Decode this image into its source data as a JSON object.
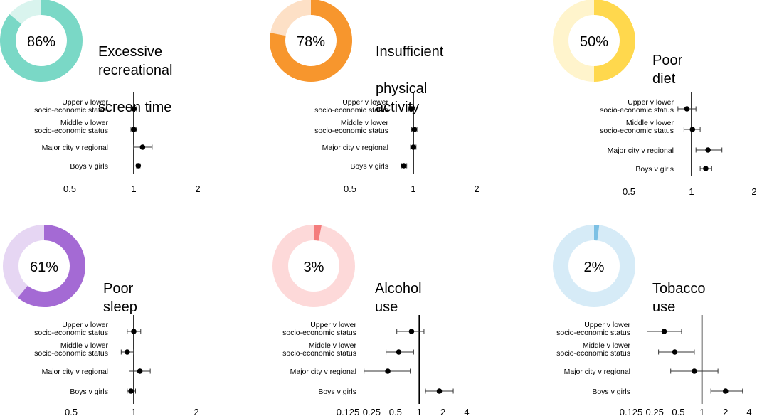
{
  "chart_data": [
    {
      "type": "donut-forest",
      "percent_label": "86%",
      "percent": 86,
      "title": "Excessive recreational screen time",
      "title_lines": [
        "Excessive recreational",
        "screen time"
      ],
      "ring_color": "#7ad8c6",
      "ring_bg_color": "#d9f4ee",
      "row_labels": [
        [
          "Upper v lower",
          "socio-economic status"
        ],
        [
          "Middle v lower",
          "socio-economic status"
        ],
        [
          "Major city v regional"
        ],
        [
          "Boys v girls"
        ]
      ],
      "xscale": "log",
      "xticks": [
        "0.5",
        "1",
        "2"
      ],
      "xtick_values": [
        0.5,
        1,
        2
      ],
      "xlim": [
        0.5,
        2
      ],
      "ref_line": 1,
      "points": [
        {
          "label": "Upper v lower socio-economic status",
          "estimate": 1.0,
          "ci": [
            0.97,
            1.03
          ]
        },
        {
          "label": "Middle v lower socio-economic status",
          "estimate": 1.0,
          "ci": [
            0.97,
            1.03
          ]
        },
        {
          "label": "Major city v regional",
          "estimate": 1.1,
          "ci": [
            1.0,
            1.22
          ]
        },
        {
          "label": "Boys v girls",
          "estimate": 1.05,
          "ci": [
            1.03,
            1.07
          ]
        }
      ]
    },
    {
      "type": "donut-forest",
      "percent_label": "78%",
      "percent": 78,
      "title": "Insufficient physical activity",
      "title_lines": [
        "Insufficient",
        "physical activity"
      ],
      "ring_color": "#f7962d",
      "ring_bg_color": "#fde0c6",
      "row_labels": [
        [
          "Upper v lower",
          "socio-economic status"
        ],
        [
          "Middle v lower",
          "socio-economic status"
        ],
        [
          "Major city v regional"
        ],
        [
          "Boys v girls"
        ]
      ],
      "xscale": "log",
      "xticks": [
        "0.5",
        "1",
        "2"
      ],
      "xtick_values": [
        0.5,
        1,
        2
      ],
      "xlim": [
        0.5,
        2
      ],
      "ref_line": 1,
      "points": [
        {
          "label": "Upper v lower socio-economic status",
          "estimate": 0.98,
          "ci": [
            0.95,
            1.02
          ]
        },
        {
          "label": "Middle v lower socio-economic status",
          "estimate": 1.01,
          "ci": [
            0.98,
            1.04
          ]
        },
        {
          "label": "Major city v regional",
          "estimate": 1.0,
          "ci": [
            0.97,
            1.03
          ]
        },
        {
          "label": "Boys v girls",
          "estimate": 0.9,
          "ci": [
            0.88,
            0.93
          ]
        }
      ]
    },
    {
      "type": "donut-forest",
      "percent_label": "50%",
      "percent": 50,
      "title": "Poor diet",
      "title_lines": [
        "Poor diet"
      ],
      "ring_color": "#ffd84d",
      "ring_bg_color": "#fff4cc",
      "row_labels": [
        [
          "Upper v lower",
          "socio-economic status"
        ],
        [
          "Middle v lower",
          "socio-economic status"
        ],
        [
          "Major city v regional"
        ],
        [
          "Boys v girls"
        ]
      ],
      "xscale": "log",
      "xticks": [
        "0.5",
        "1",
        "2"
      ],
      "xtick_values": [
        0.5,
        1,
        2
      ],
      "xlim": [
        0.5,
        2
      ],
      "ref_line": 1,
      "points": [
        {
          "label": "Upper v lower socio-economic status",
          "estimate": 0.95,
          "ci": [
            0.86,
            1.05
          ]
        },
        {
          "label": "Middle v lower socio-economic status",
          "estimate": 1.01,
          "ci": [
            0.92,
            1.1
          ]
        },
        {
          "label": "Major city v regional",
          "estimate": 1.2,
          "ci": [
            1.05,
            1.4
          ]
        },
        {
          "label": "Boys v girls",
          "estimate": 1.17,
          "ci": [
            1.1,
            1.25
          ]
        }
      ]
    },
    {
      "type": "donut-forest",
      "percent_label": "61%",
      "percent": 61,
      "title": "Poor sleep",
      "title_lines": [
        "Poor sleep"
      ],
      "ring_color": "#a46ad4",
      "ring_bg_color": "#e6d6f3",
      "row_labels": [
        [
          "Upper v lower",
          "socio-economic status"
        ],
        [
          "Middle v lower",
          "socio-economic status"
        ],
        [
          "Major city v regional"
        ],
        [
          "Boys v girls"
        ]
      ],
      "xscale": "log",
      "xticks": [
        "0.5",
        "1",
        "2"
      ],
      "xtick_values": [
        0.5,
        1,
        2
      ],
      "xlim": [
        0.5,
        2
      ],
      "ref_line": 1,
      "points": [
        {
          "label": "Upper v lower socio-economic status",
          "estimate": 1.0,
          "ci": [
            0.93,
            1.08
          ]
        },
        {
          "label": "Middle v lower socio-economic status",
          "estimate": 0.93,
          "ci": [
            0.87,
            1.0
          ]
        },
        {
          "label": "Major city v regional",
          "estimate": 1.07,
          "ci": [
            0.95,
            1.2
          ]
        },
        {
          "label": "Boys v girls",
          "estimate": 0.97,
          "ci": [
            0.93,
            1.02
          ]
        }
      ]
    },
    {
      "type": "donut-forest",
      "percent_label": "3%",
      "percent": 3,
      "title": "Alcohol use",
      "title_lines": [
        "Alcohol use"
      ],
      "ring_color": "#f47c7c",
      "ring_bg_color": "#fdd9d9",
      "row_labels": [
        [
          "Upper v lower",
          "socio-economic status"
        ],
        [
          "Middle v lower",
          "socio-economic status"
        ],
        [
          "Major city v regional"
        ],
        [
          "Boys v girls"
        ]
      ],
      "xscale": "log",
      "xticks": [
        "0.125",
        "0.25",
        "0.5",
        "1",
        "2",
        "4"
      ],
      "xtick_values": [
        0.125,
        0.25,
        0.5,
        1,
        2,
        4
      ],
      "xlim": [
        0.125,
        4
      ],
      "ref_line": 1,
      "points": [
        {
          "label": "Upper v lower socio-economic status",
          "estimate": 0.8,
          "ci": [
            0.52,
            1.15
          ]
        },
        {
          "label": "Middle v lower socio-economic status",
          "estimate": 0.55,
          "ci": [
            0.38,
            0.85
          ]
        },
        {
          "label": "Major city v regional",
          "estimate": 0.4,
          "ci": [
            0.2,
            0.77
          ]
        },
        {
          "label": "Boys v girls",
          "estimate": 1.8,
          "ci": [
            1.2,
            2.7
          ]
        }
      ]
    },
    {
      "type": "donut-forest",
      "percent_label": "2%",
      "percent": 2,
      "title": "Tobacco use",
      "title_lines": [
        "Tobacco use"
      ],
      "ring_color": "#7cc0e4",
      "ring_bg_color": "#d6ebf7",
      "row_labels": [
        [
          "Upper v lower",
          "socio-economic status"
        ],
        [
          "Middle v lower",
          "socio-economic status"
        ],
        [
          "Major city v regional"
        ],
        [
          "Boys v girls"
        ]
      ],
      "xscale": "log",
      "xticks": [
        "0.125",
        "0.25",
        "0.5",
        "1",
        "2",
        "4"
      ],
      "xtick_values": [
        0.125,
        0.25,
        0.5,
        1,
        2,
        4
      ],
      "xlim": [
        0.125,
        4
      ],
      "ref_line": 1,
      "points": [
        {
          "label": "Upper v lower socio-economic status",
          "estimate": 0.33,
          "ci": [
            0.2,
            0.55
          ]
        },
        {
          "label": "Middle v lower socio-economic status",
          "estimate": 0.45,
          "ci": [
            0.28,
            0.8
          ]
        },
        {
          "label": "Major city v regional",
          "estimate": 0.8,
          "ci": [
            0.4,
            1.6
          ]
        },
        {
          "label": "Boys v girls",
          "estimate": 2.0,
          "ci": [
            1.3,
            3.3
          ]
        }
      ]
    }
  ]
}
